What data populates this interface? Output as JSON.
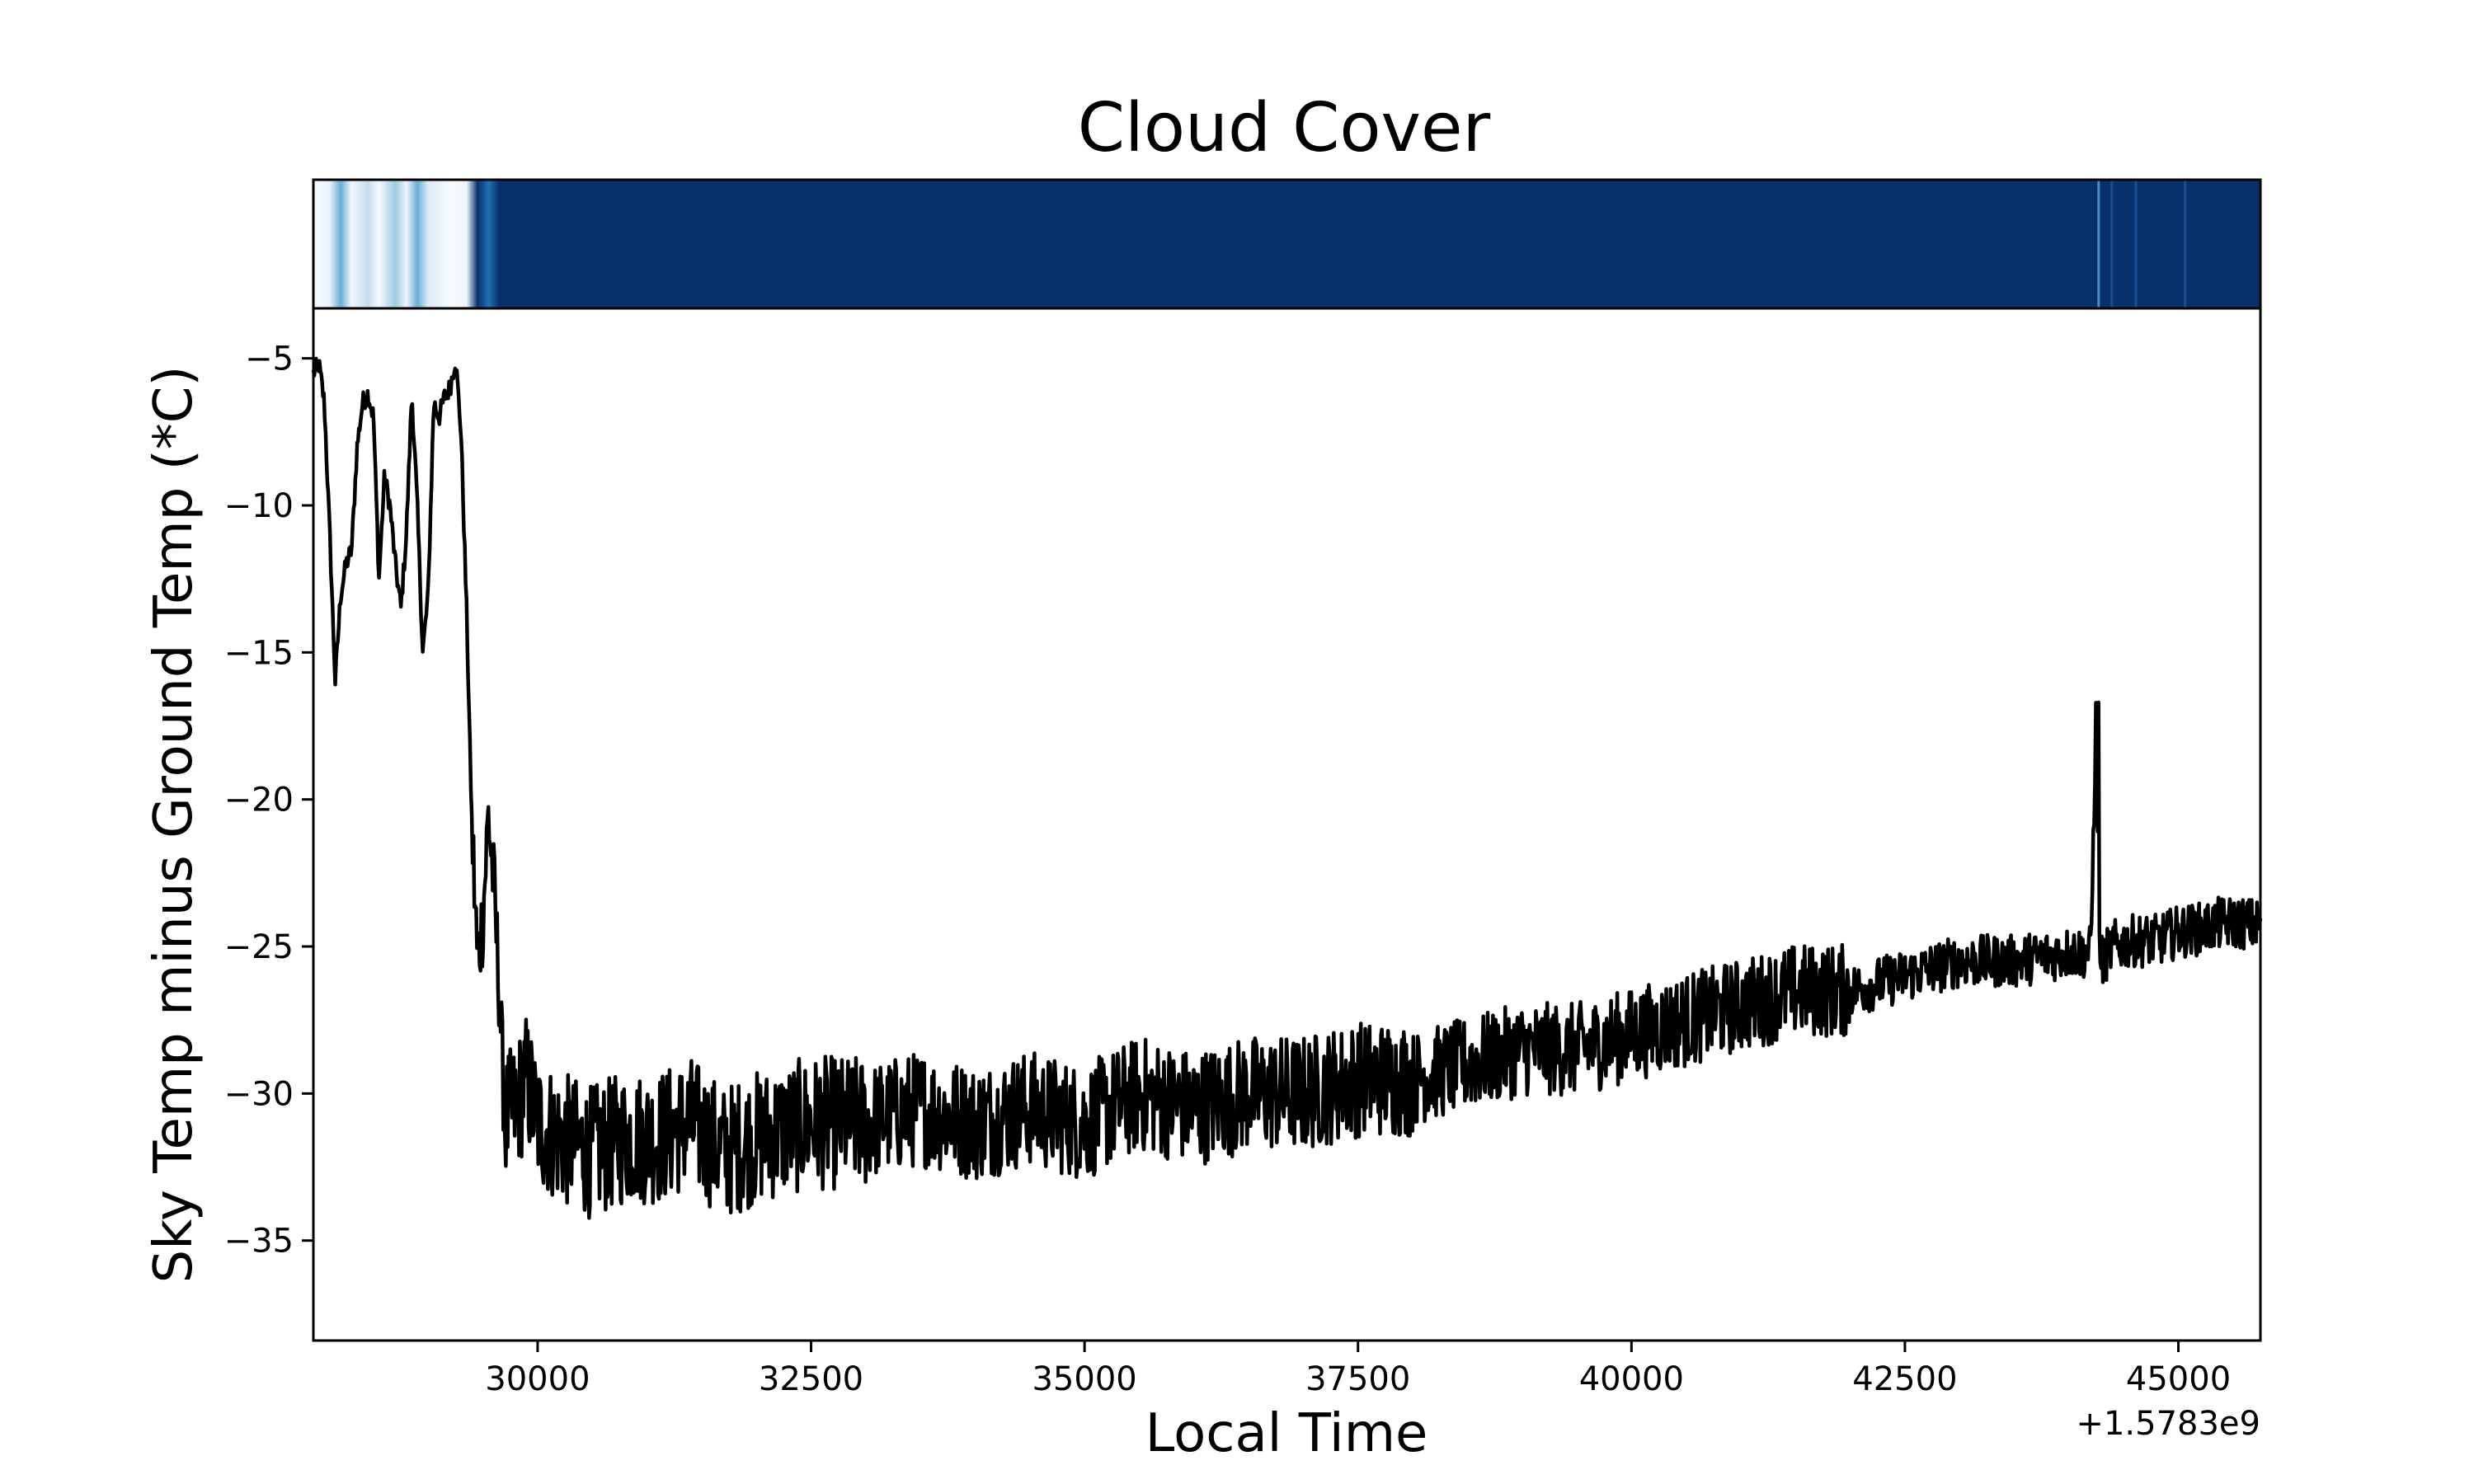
{
  "chart_data": {
    "type": "line",
    "title": "Cloud Cover",
    "xlabel": "Local Time",
    "ylabel": "Sky Temp minus Ground Temp (*C)",
    "x_offset_text": "+1.5783e9",
    "xlim": [
      27950,
      45750
    ],
    "ylim": [
      -38.4,
      -3.3
    ],
    "x_ticks": [
      30000,
      32500,
      35000,
      37500,
      40000,
      42500,
      45000
    ],
    "x_tick_labels": [
      "30000",
      "32500",
      "35000",
      "37500",
      "40000",
      "42500",
      "45000"
    ],
    "y_ticks": [
      -5,
      -10,
      -15,
      -20,
      -25,
      -30,
      -35
    ],
    "y_tick_labels": [
      "−5",
      "−10",
      "−15",
      "−20",
      "−25",
      "−30",
      "−35"
    ],
    "grid": false,
    "series": [
      {
        "color": "#000000",
        "x": [
          27950,
          28000,
          28050,
          28100,
          28150,
          28200,
          28250,
          28300,
          28350,
          28400,
          28450,
          28500,
          28550,
          28600,
          28650,
          28700,
          28750,
          28800,
          28850,
          28900,
          28950,
          29000,
          29050,
          29100,
          29150,
          29200,
          29250,
          29300,
          29350,
          29400,
          29450,
          29500,
          29550,
          29600,
          29650,
          29700,
          29800,
          29900,
          30000,
          30200,
          30500,
          30800,
          31100,
          31400,
          31700,
          32000,
          32500,
          33000,
          33500,
          34000,
          34500,
          35000,
          35500,
          36000,
          36500,
          37000,
          37500,
          38000,
          38500,
          39000,
          39500,
          40000,
          40500,
          41000,
          41500,
          42000,
          42500,
          43000,
          43500,
          44000,
          44200,
          44250,
          44270,
          44300,
          44400,
          44600,
          44800,
          45000,
          45200,
          45400,
          45600,
          45750
        ],
        "y": [
          -5.5,
          -5.2,
          -6.5,
          -11,
          -16,
          -13,
          -12,
          -11.5,
          -8,
          -6.5,
          -6.2,
          -7,
          -12.5,
          -9,
          -10,
          -12,
          -13.5,
          -11,
          -6.2,
          -10,
          -15,
          -13,
          -6.5,
          -7,
          -6.3,
          -6,
          -5,
          -7.5,
          -13.5,
          -21,
          -25.5,
          -24,
          -20.5,
          -23,
          -26.5,
          -31,
          -30.5,
          -29.5,
          -31,
          -31.5,
          -32,
          -31.5,
          -31.5,
          -31,
          -32,
          -31.5,
          -31,
          -31,
          -30.5,
          -31,
          -30.5,
          -31,
          -30,
          -30.5,
          -30,
          -30,
          -29.5,
          -29.5,
          -29,
          -28.5,
          -28.5,
          -28,
          -27.5,
          -27,
          -26.5,
          -26.5,
          -26,
          -25.5,
          -25.5,
          -25.2,
          -25.2,
          -16.7,
          -25,
          -25.5,
          -25,
          -24.8,
          -24.8,
          -24.5,
          -24.4,
          -24.2,
          -24.2,
          -24.3
        ]
      }
    ],
    "colorbar_stops": [
      {
        "x": 27950,
        "color": "#f7fbff"
      },
      {
        "x": 28100,
        "color": "#e8f1fa"
      },
      {
        "x": 28200,
        "color": "#6baed6"
      },
      {
        "x": 28300,
        "color": "#f2f7fd"
      },
      {
        "x": 28450,
        "color": "#c6dbef"
      },
      {
        "x": 28550,
        "color": "#f7fbff"
      },
      {
        "x": 28700,
        "color": "#9ecae1"
      },
      {
        "x": 28800,
        "color": "#eef5fc"
      },
      {
        "x": 28900,
        "color": "#6baed6"
      },
      {
        "x": 29000,
        "color": "#deebf7"
      },
      {
        "x": 29200,
        "color": "#f7fbff"
      },
      {
        "x": 29350,
        "color": "#eef5fc"
      },
      {
        "x": 29450,
        "color": "#08306b"
      },
      {
        "x": 29550,
        "color": "#2171b5"
      },
      {
        "x": 29650,
        "color": "#08306b"
      },
      {
        "x": 45750,
        "color": "#08306b"
      }
    ]
  }
}
